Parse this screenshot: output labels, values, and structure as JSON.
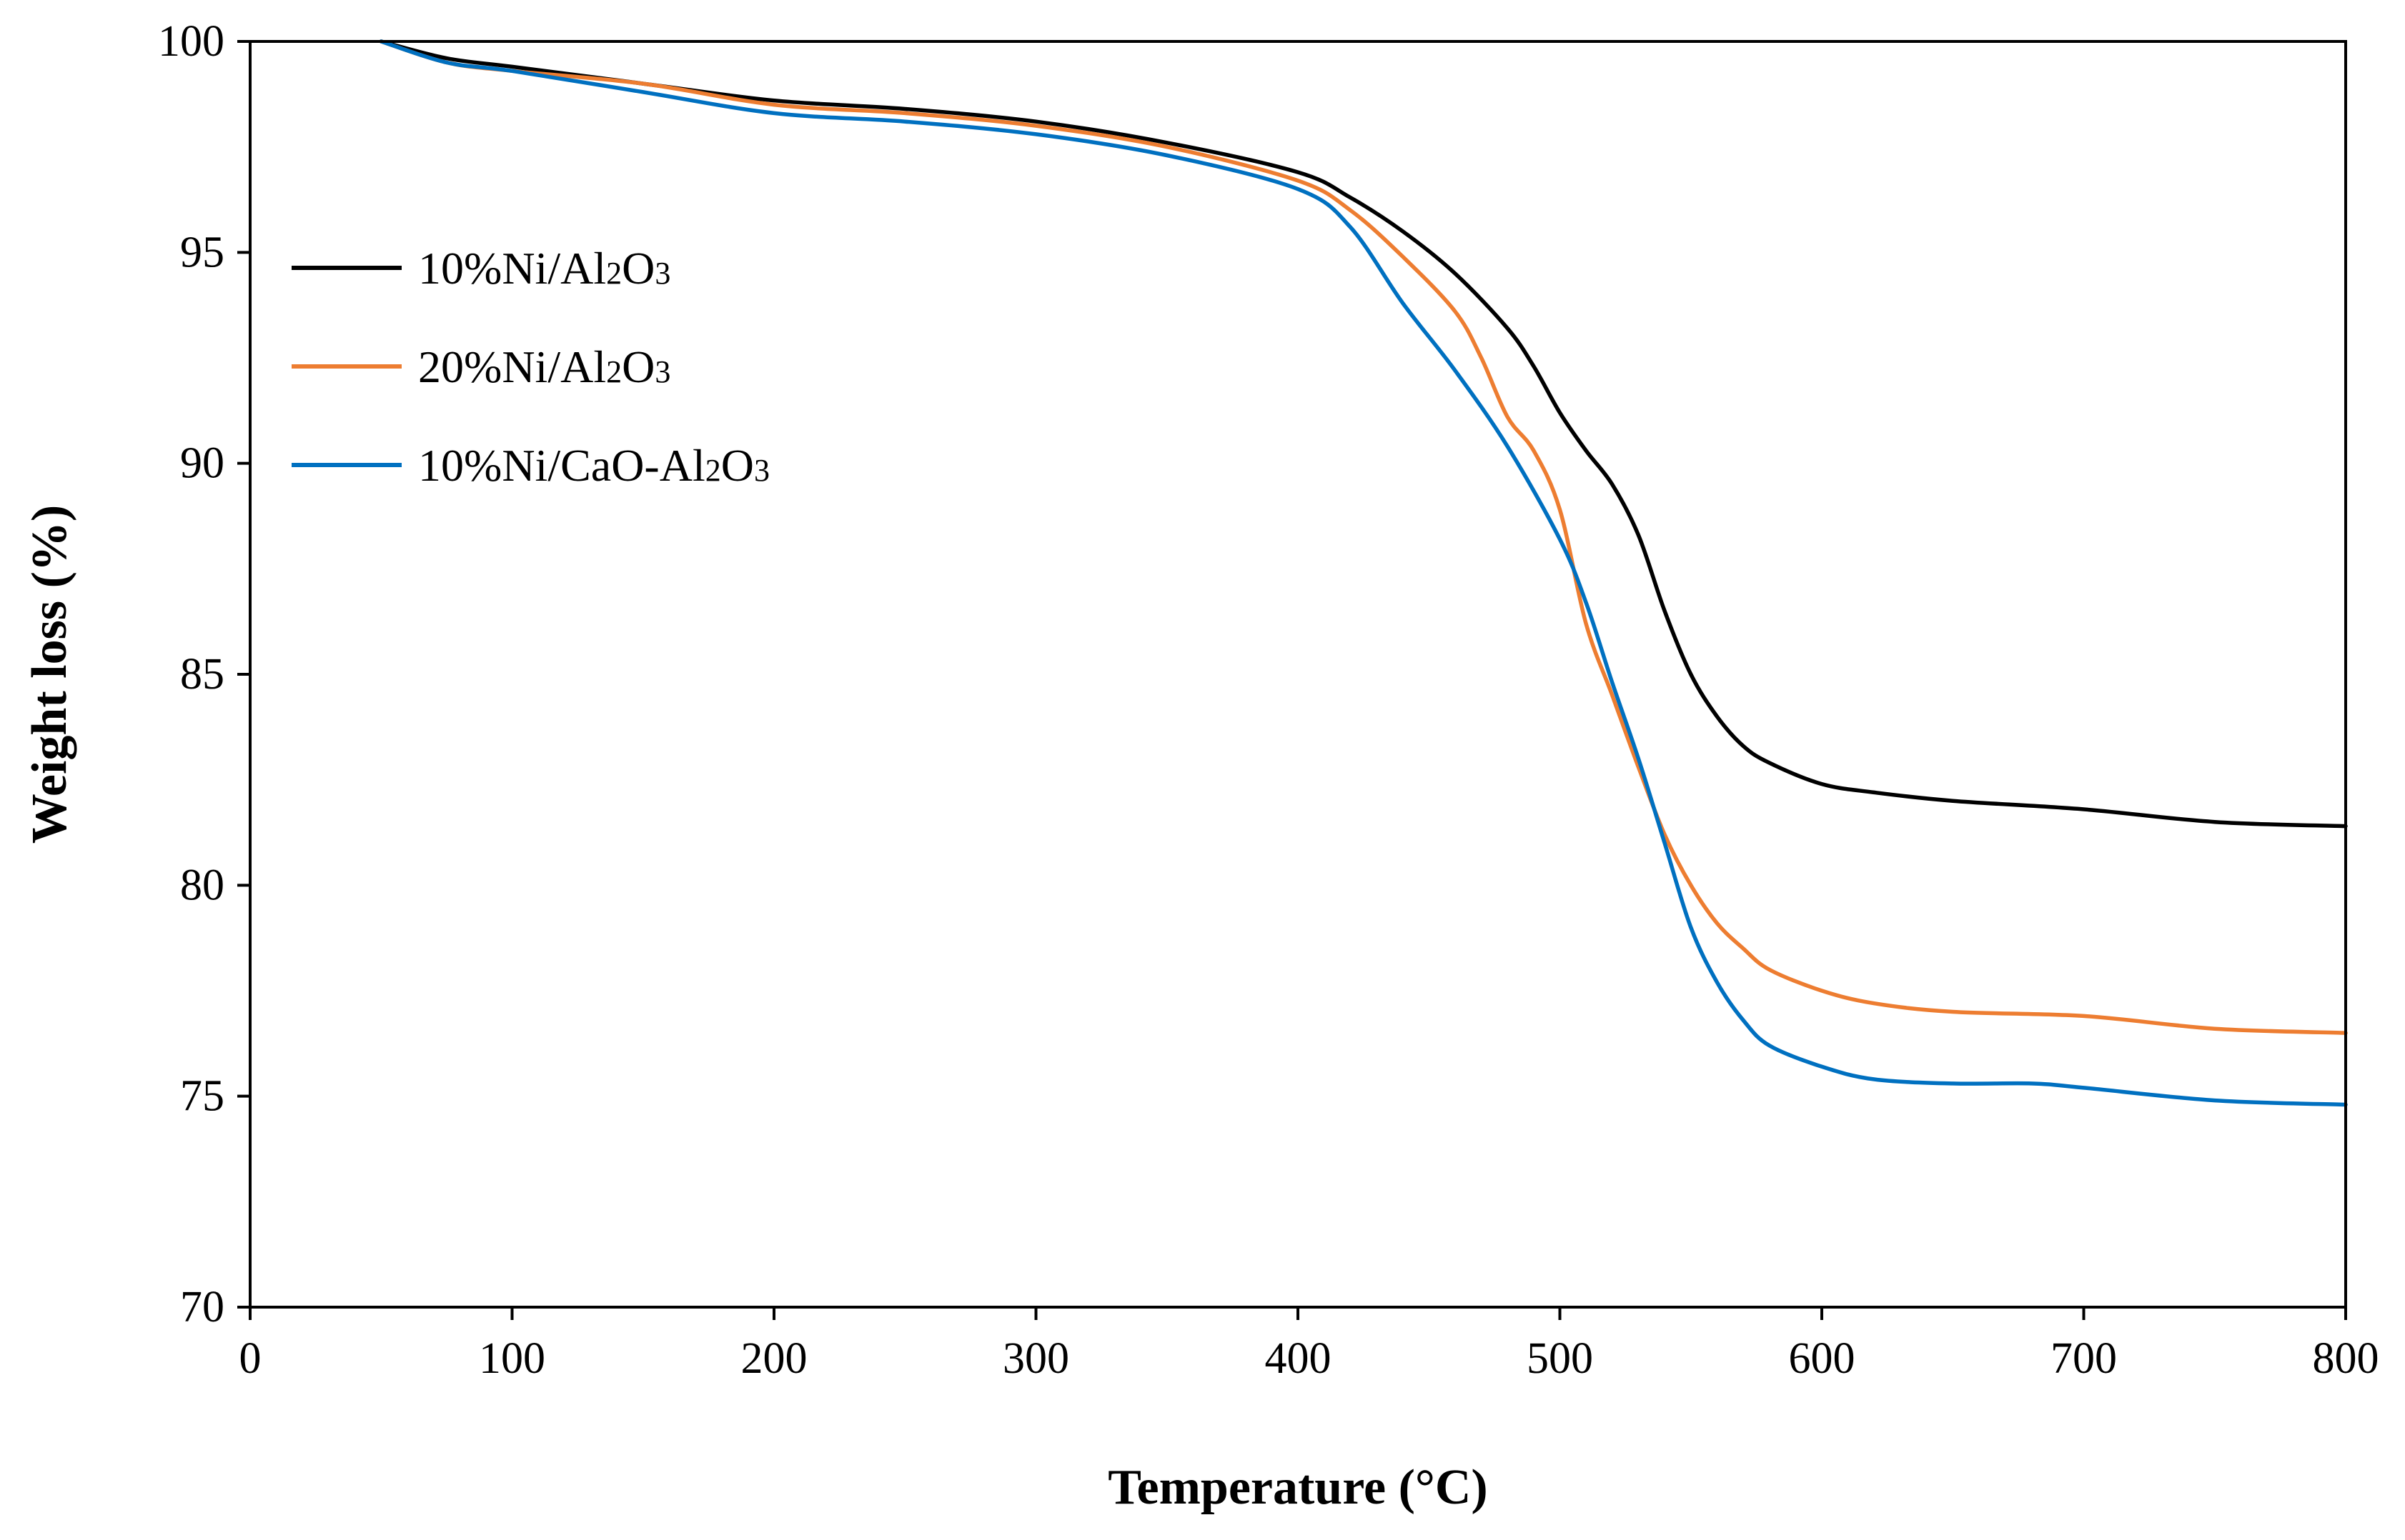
{
  "chart_data": {
    "type": "line",
    "title": "",
    "xlabel": "Temperature (°C)",
    "ylabel": "Weight loss (%)",
    "xlim": [
      0,
      800
    ],
    "ylim": [
      70,
      100
    ],
    "xticks": [
      0,
      100,
      200,
      300,
      400,
      500,
      600,
      700,
      800
    ],
    "yticks": [
      70,
      75,
      80,
      85,
      90,
      95,
      100
    ],
    "grid": false,
    "legend_position": "top-left",
    "series": [
      {
        "name": "10%Ni/Al2O3",
        "legend_parts": [
          "10%Ni/Al",
          "2",
          "O",
          "3"
        ],
        "color": "#000000",
        "x": [
          50,
          75,
          100,
          150,
          200,
          250,
          300,
          350,
          400,
          420,
          440,
          460,
          480,
          490,
          500,
          510,
          520,
          530,
          540,
          550,
          560,
          570,
          580,
          600,
          620,
          650,
          700,
          750,
          800
        ],
        "y": [
          100,
          99.6,
          99.4,
          99.0,
          98.6,
          98.4,
          98.1,
          97.6,
          96.9,
          96.3,
          95.5,
          94.5,
          93.2,
          92.3,
          91.2,
          90.3,
          89.5,
          88.3,
          86.5,
          85.0,
          84.0,
          83.3,
          82.9,
          82.4,
          82.2,
          82.0,
          81.8,
          81.5,
          81.4
        ]
      },
      {
        "name": "20%Ni/Al2O3",
        "legend_parts": [
          "20%Ni/Al",
          "2",
          "O",
          "3"
        ],
        "color": "#ED7D31",
        "x": [
          50,
          75,
          100,
          150,
          200,
          250,
          300,
          350,
          400,
          420,
          440,
          460,
          470,
          480,
          490,
          500,
          510,
          520,
          530,
          540,
          550,
          560,
          570,
          580,
          600,
          620,
          650,
          700,
          750,
          800
        ],
        "y": [
          100,
          99.5,
          99.3,
          99.0,
          98.5,
          98.3,
          98.0,
          97.5,
          96.7,
          96.0,
          94.9,
          93.6,
          92.5,
          91.1,
          90.3,
          88.9,
          86.2,
          84.5,
          82.8,
          81.2,
          80.0,
          79.1,
          78.5,
          78.0,
          77.5,
          77.2,
          77.0,
          76.9,
          76.6,
          76.5
        ]
      },
      {
        "name": "10%Ni/CaO-Al2O3",
        "legend_parts": [
          "10%Ni/CaO-Al",
          "2",
          "O",
          "3"
        ],
        "color": "#0070C0",
        "x": [
          50,
          75,
          100,
          150,
          200,
          250,
          300,
          350,
          400,
          420,
          440,
          460,
          480,
          500,
          510,
          520,
          530,
          540,
          550,
          560,
          570,
          580,
          600,
          620,
          650,
          680,
          700,
          750,
          800
        ],
        "y": [
          100,
          99.5,
          99.3,
          98.8,
          98.3,
          98.1,
          97.8,
          97.3,
          96.5,
          95.6,
          93.8,
          92.2,
          90.4,
          88.2,
          86.7,
          84.8,
          83.0,
          81.0,
          79.0,
          77.7,
          76.8,
          76.2,
          75.7,
          75.4,
          75.3,
          75.3,
          75.2,
          74.9,
          74.8
        ]
      }
    ]
  }
}
